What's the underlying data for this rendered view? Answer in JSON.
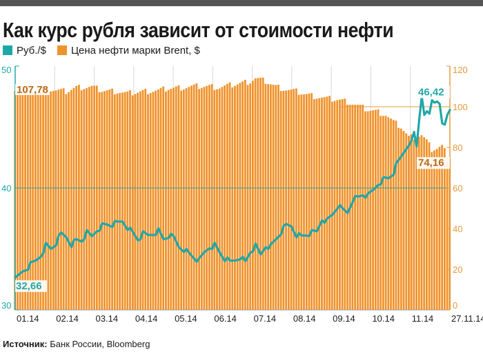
{
  "title": "Как курс рубля зависит от стоимости нефти",
  "legend": {
    "rub_label": "Руб./$",
    "brent_label": "Цена нефти марки Brent, $"
  },
  "source": {
    "label": "Источник:",
    "text": "Банк России, Bloomberg"
  },
  "colors": {
    "rub": "#1fa7a8",
    "brent": "#f0922b",
    "brent_edge": "#b96a1a",
    "axis_left": "#1fa7a8",
    "axis_right": "#e39a3a",
    "text": "#1a1a1a",
    "topbar": "#555555"
  },
  "chart_data": {
    "type": "bar+line",
    "left_axis": {
      "series": "Руб./$",
      "ylim": [
        30,
        50
      ],
      "ticks": [
        30,
        40,
        50
      ]
    },
    "right_axis": {
      "series": "Brent",
      "ylim": [
        0,
        120
      ],
      "ticks": [
        0,
        20,
        40,
        60,
        80,
        100,
        120
      ]
    },
    "x_ticks": [
      "01.14",
      "02.14",
      "03.14",
      "04.14",
      "05.14",
      "06.14",
      "07.14",
      "08.14",
      "09.14",
      "10.14",
      "11.14",
      "27.11.14"
    ],
    "annotations": {
      "rub_start": "32,66",
      "rub_end": "46,42",
      "brent_start": "107,78",
      "brent_end": "74,16"
    },
    "rub_anchors": [
      [
        0,
        32.66
      ],
      [
        2,
        33.0
      ],
      [
        5,
        33.5
      ],
      [
        8,
        34.0
      ],
      [
        10,
        34.5
      ],
      [
        12,
        35.3
      ],
      [
        14,
        35.0
      ],
      [
        16,
        35.5
      ],
      [
        18,
        36.2
      ],
      [
        20,
        36.0
      ],
      [
        22,
        35.4
      ],
      [
        24,
        35.7
      ],
      [
        26,
        35.7
      ],
      [
        28,
        36.3
      ],
      [
        30,
        36.0
      ],
      [
        32,
        36.6
      ],
      [
        34,
        36.9
      ],
      [
        36,
        37.0
      ],
      [
        38,
        37.0
      ],
      [
        40,
        37.1
      ],
      [
        42,
        37.3
      ],
      [
        44,
        36.8
      ],
      [
        46,
        36.3
      ],
      [
        48,
        35.8
      ],
      [
        50,
        36.2
      ],
      [
        52,
        36.1
      ],
      [
        54,
        36.3
      ],
      [
        56,
        36.5
      ],
      [
        58,
        35.8
      ],
      [
        60,
        36.1
      ],
      [
        62,
        35.9
      ],
      [
        64,
        35.2
      ],
      [
        66,
        35.0
      ],
      [
        68,
        34.6
      ],
      [
        70,
        34.3
      ],
      [
        72,
        34.0
      ],
      [
        74,
        34.7
      ],
      [
        76,
        35.2
      ],
      [
        78,
        35.3
      ],
      [
        80,
        34.7
      ],
      [
        82,
        34.2
      ],
      [
        84,
        33.9
      ],
      [
        86,
        34.1
      ],
      [
        88,
        34.4
      ],
      [
        90,
        33.9
      ],
      [
        92,
        34.8
      ],
      [
        94,
        35.2
      ],
      [
        96,
        34.5
      ],
      [
        98,
        35.3
      ],
      [
        100,
        35.2
      ],
      [
        102,
        35.8
      ],
      [
        104,
        36.4
      ],
      [
        106,
        36.9
      ],
      [
        108,
        36.9
      ],
      [
        110,
        36.2
      ],
      [
        112,
        36.0
      ],
      [
        114,
        36.2
      ],
      [
        116,
        36.3
      ],
      [
        118,
        36.4
      ],
      [
        120,
        37.5
      ],
      [
        122,
        37.3
      ],
      [
        124,
        37.8
      ],
      [
        126,
        38.5
      ],
      [
        128,
        38.2
      ],
      [
        130,
        38.0
      ],
      [
        132,
        39.1
      ],
      [
        134,
        39.2
      ],
      [
        136,
        39.5
      ],
      [
        138,
        39.3
      ],
      [
        140,
        39.8
      ],
      [
        142,
        40.4
      ],
      [
        144,
        40.7
      ],
      [
        146,
        40.8
      ],
      [
        148,
        41.3
      ],
      [
        150,
        42.3
      ],
      [
        152,
        42.9
      ],
      [
        154,
        43.5
      ],
      [
        155,
        43.9
      ],
      [
        156,
        44.6
      ],
      [
        157,
        43.4
      ],
      [
        158,
        45.6
      ],
      [
        159,
        47.5
      ],
      [
        160,
        46.0
      ],
      [
        161,
        46.3
      ],
      [
        162,
        46.1
      ],
      [
        163,
        47.2
      ],
      [
        164,
        47.0
      ],
      [
        165,
        47.1
      ],
      [
        166,
        46.9
      ],
      [
        167,
        45.3
      ],
      [
        168,
        45.2
      ],
      [
        169,
        46.0
      ],
      [
        170,
        46.4
      ]
    ],
    "brent_anchors": [
      [
        0,
        107.78
      ],
      [
        6,
        108.5
      ],
      [
        10,
        109.5
      ],
      [
        16,
        108.0
      ],
      [
        20,
        107.5
      ],
      [
        24,
        109.5
      ],
      [
        30,
        109.8
      ],
      [
        34,
        108.0
      ],
      [
        40,
        107.5
      ],
      [
        44,
        106.5
      ],
      [
        50,
        107.5
      ],
      [
        56,
        108.0
      ],
      [
        60,
        109.0
      ],
      [
        66,
        109.5
      ],
      [
        70,
        110.0
      ],
      [
        76,
        110.0
      ],
      [
        80,
        109.5
      ],
      [
        84,
        110.5
      ],
      [
        88,
        111.5
      ],
      [
        92,
        112.5
      ],
      [
        94,
        114.0
      ],
      [
        98,
        112.5
      ],
      [
        102,
        110.0
      ],
      [
        106,
        108.5
      ],
      [
        110,
        107.5
      ],
      [
        114,
        106.0
      ],
      [
        118,
        105.0
      ],
      [
        122,
        104.0
      ],
      [
        126,
        103.5
      ],
      [
        130,
        102.5
      ],
      [
        134,
        100.5
      ],
      [
        138,
        98.5
      ],
      [
        142,
        97.5
      ],
      [
        145,
        96.0
      ],
      [
        148,
        92.5
      ],
      [
        151,
        90.0
      ],
      [
        154,
        85.0
      ],
      [
        157,
        85.5
      ],
      [
        159,
        86.0
      ],
      [
        161,
        83.0
      ],
      [
        163,
        79.0
      ],
      [
        165,
        79.5
      ],
      [
        167,
        80.5
      ],
      [
        170,
        74.16
      ]
    ],
    "total_days": 170
  }
}
